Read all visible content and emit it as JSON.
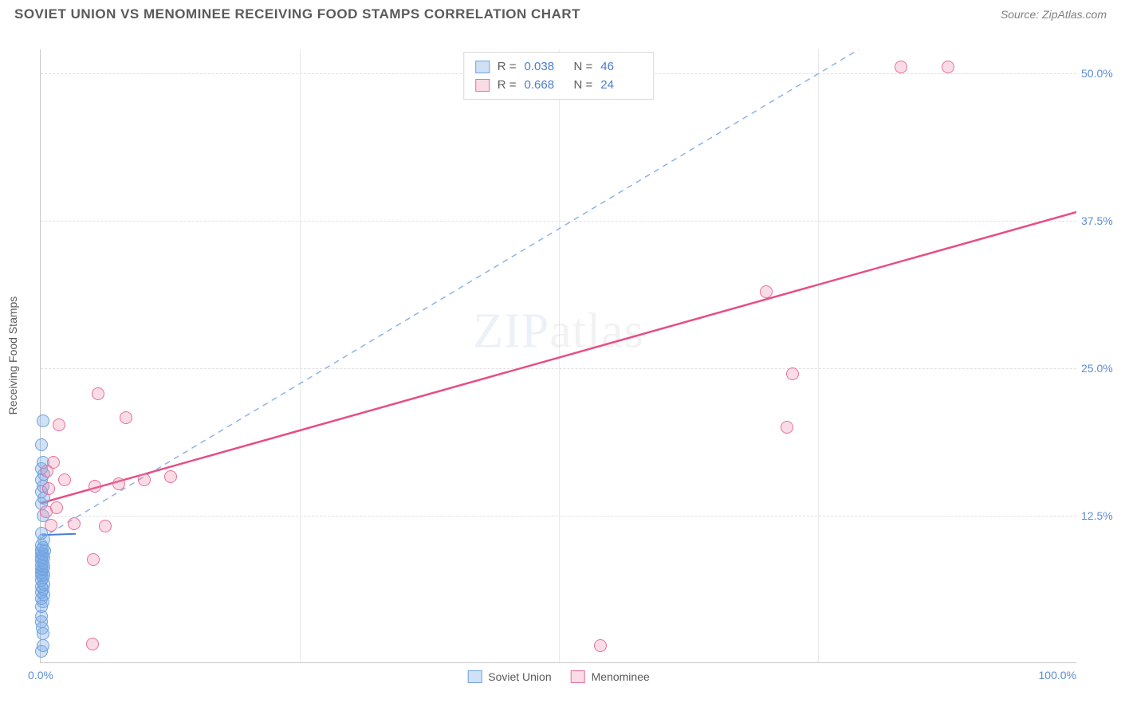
{
  "header": {
    "title": "SOVIET UNION VS MENOMINEE RECEIVING FOOD STAMPS CORRELATION CHART",
    "source": "Source: ZipAtlas.com"
  },
  "watermark": {
    "a": "ZIP",
    "b": "atlas"
  },
  "chart": {
    "type": "scatter",
    "ylabel": "Receiving Food Stamps",
    "xlim": [
      0,
      100
    ],
    "ylim": [
      0,
      52
    ],
    "xticks": [
      0,
      25,
      50,
      75,
      100
    ],
    "xtick_labels": [
      "0.0%",
      "",
      "",
      "",
      "100.0%"
    ],
    "yticks": [
      12.5,
      25.0,
      37.5,
      50.0
    ],
    "ytick_labels": [
      "12.5%",
      "25.0%",
      "37.5%",
      "50.0%"
    ],
    "background_color": "#ffffff",
    "grid_color": "#e0e0e0",
    "axis_color": "#c8c8c8",
    "tick_label_color": "#5b8dd6",
    "marker_radius": 8,
    "series": [
      {
        "name": "Soviet Union",
        "fill": "rgba(120,170,230,0.35)",
        "stroke": "#6fa3e0",
        "R": "0.038",
        "N": "46",
        "trend": {
          "x1": 0.1,
          "y1": 10.8,
          "x2": 3.4,
          "y2": 10.9,
          "dash": false,
          "color": "#4a7dd0",
          "width": 2
        },
        "points": [
          [
            0.1,
            4.0
          ],
          [
            0.1,
            4.8
          ],
          [
            0.2,
            5.2
          ],
          [
            0.1,
            5.5
          ],
          [
            0.3,
            5.8
          ],
          [
            0.1,
            6.0
          ],
          [
            0.2,
            6.3
          ],
          [
            0.1,
            6.5
          ],
          [
            0.3,
            6.7
          ],
          [
            0.1,
            7.0
          ],
          [
            0.2,
            7.2
          ],
          [
            0.1,
            7.4
          ],
          [
            0.3,
            7.5
          ],
          [
            0.1,
            7.7
          ],
          [
            0.2,
            7.9
          ],
          [
            0.1,
            8.0
          ],
          [
            0.3,
            8.2
          ],
          [
            0.1,
            8.3
          ],
          [
            0.2,
            8.5
          ],
          [
            0.1,
            8.7
          ],
          [
            0.3,
            8.9
          ],
          [
            0.1,
            9.0
          ],
          [
            0.2,
            9.2
          ],
          [
            0.1,
            9.3
          ],
          [
            0.4,
            9.5
          ],
          [
            0.1,
            9.6
          ],
          [
            0.2,
            9.8
          ],
          [
            0.1,
            10.0
          ],
          [
            0.3,
            10.5
          ],
          [
            0.1,
            11.0
          ],
          [
            0.2,
            12.5
          ],
          [
            0.1,
            13.5
          ],
          [
            0.3,
            14.0
          ],
          [
            0.1,
            14.5
          ],
          [
            0.2,
            15.0
          ],
          [
            0.1,
            15.5
          ],
          [
            0.3,
            16.0
          ],
          [
            0.1,
            16.5
          ],
          [
            0.2,
            17.0
          ],
          [
            0.1,
            18.5
          ],
          [
            0.2,
            20.5
          ],
          [
            0.1,
            1.0
          ],
          [
            0.2,
            1.5
          ],
          [
            0.25,
            2.5
          ],
          [
            0.15,
            3.0
          ],
          [
            0.1,
            3.5
          ]
        ]
      },
      {
        "name": "Menominee",
        "fill": "rgba(240,140,170,0.30)",
        "stroke": "#e86f9c",
        "R": "0.668",
        "N": "24",
        "trend": {
          "x1": 0,
          "y1": 13.5,
          "x2": 100,
          "y2": 38.2,
          "dash": false,
          "color": "#e64e86",
          "width": 2.5
        },
        "points": [
          [
            1.8,
            20.2
          ],
          [
            5.5,
            22.8
          ],
          [
            8.2,
            20.8
          ],
          [
            3.2,
            11.8
          ],
          [
            6.2,
            11.6
          ],
          [
            5.1,
            8.8
          ],
          [
            0.8,
            14.8
          ],
          [
            1.2,
            17.0
          ],
          [
            0.5,
            12.8
          ],
          [
            1.5,
            13.2
          ],
          [
            2.3,
            15.5
          ],
          [
            5.2,
            15.0
          ],
          [
            7.5,
            15.2
          ],
          [
            10.0,
            15.5
          ],
          [
            12.5,
            15.8
          ],
          [
            70.0,
            31.5
          ],
          [
            72.0,
            20.0
          ],
          [
            72.5,
            24.5
          ],
          [
            83.0,
            50.5
          ],
          [
            87.5,
            50.5
          ],
          [
            54.0,
            1.5
          ],
          [
            5.0,
            1.6
          ],
          [
            0.6,
            16.3
          ],
          [
            1.0,
            11.7
          ]
        ]
      }
    ],
    "reference_line": {
      "x1": 0,
      "y1": 10.5,
      "x2": 79,
      "y2": 52,
      "dash": true,
      "color": "#8fb3e3",
      "width": 1.5
    }
  },
  "legend_bottom": [
    {
      "label": "Soviet Union",
      "fill": "rgba(120,170,230,0.35)",
      "stroke": "#6fa3e0"
    },
    {
      "label": "Menominee",
      "fill": "rgba(240,140,170,0.30)",
      "stroke": "#e86f9c"
    }
  ]
}
